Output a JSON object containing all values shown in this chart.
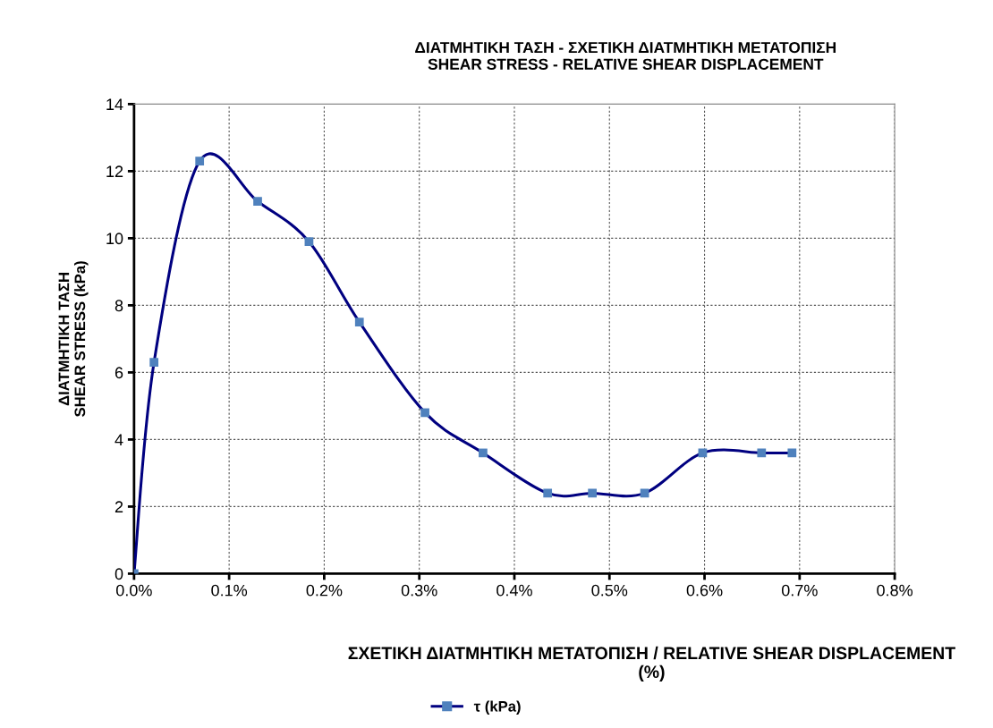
{
  "chart_data": {
    "type": "line",
    "title": "ΔΙΑΤΜΗΤΙΚΗ ΤΑΣΗ - ΣΧΕΤΙΚΗ ΔΙΑΤΜΗΤΙΚΗ ΜΕΤΑΤΟΠΙΣΗ\nSHEAR STRESS - RELATIVE SHEAR DISPLACEMENT",
    "xlabel": "ΣΧΕΤΙΚΗ ΔΙΑΤΜΗΤΙΚΗ ΜΕΤΑΤΟΠΙΣΗ / RELATIVE SHEAR DISPLACEMENT\n(%)",
    "ylabel": "ΔΙΑΤΜΗΤΙΚΗ ΤΑΣΗ\nSHEAR STRESS (kPa)",
    "x": [
      0,
      0.021,
      0.069,
      0.13,
      0.184,
      0.237,
      0.306,
      0.367,
      0.435,
      0.482,
      0.537,
      0.598,
      0.66,
      0.692
    ],
    "series": [
      {
        "name": "τ (kPa)",
        "color": "#000080",
        "colors": [
          "#4f81bd",
          "#4f81bd",
          "#4f81bd",
          "#4f81bd",
          "#4f81bd",
          "#4f81bd",
          "#4f81bd",
          "#4f81bd",
          "#4f81bd",
          "#4f81bd",
          "#4f81bd",
          "#4f81bd",
          "#4f81bd",
          "#4f81bd"
        ],
        "values": [
          0,
          6.3,
          12.3,
          11.1,
          9.9,
          7.5,
          4.8,
          3.6,
          2.4,
          2.4,
          2.4,
          3.6,
          3.6,
          3.6
        ]
      }
    ],
    "xlim": [
      0,
      0.8
    ],
    "xticks": [
      {
        "value": 0,
        "label": "0.0%"
      },
      {
        "value": 0.1,
        "label": "0.1%"
      },
      {
        "value": 0.2,
        "label": "0.2%"
      },
      {
        "value": 0.3,
        "label": "0.3%"
      },
      {
        "value": 0.4,
        "label": "0.4%"
      },
      {
        "value": 0.5,
        "label": "0.5%"
      },
      {
        "value": 0.6,
        "label": "0.6%"
      },
      {
        "value": 0.7,
        "label": "0.7%"
      },
      {
        "value": 0.8,
        "label": "0.8%"
      }
    ],
    "ylim": [
      0,
      14
    ],
    "yticks": [
      0,
      2,
      4,
      6,
      8,
      10,
      12,
      14
    ],
    "grid": true,
    "legend": "bottom",
    "marker": "square",
    "line_style": "solid"
  }
}
